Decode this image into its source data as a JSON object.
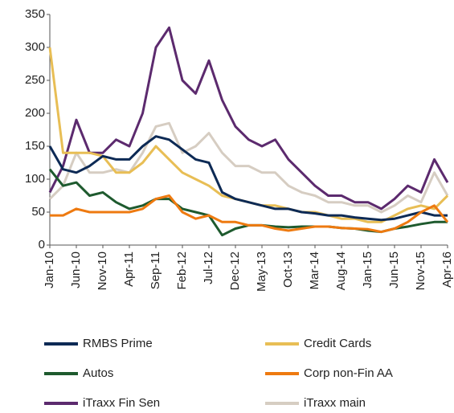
{
  "chart_data": {
    "type": "line",
    "categories": [
      "Jan-10",
      null,
      "Jun-10",
      null,
      "Nov-10",
      null,
      "Apr-11",
      null,
      "Sep-11",
      null,
      "Feb-12",
      null,
      "Jul-12",
      null,
      "Dec-12",
      null,
      "May-13",
      null,
      "Oct-13",
      null,
      "Mar-14",
      null,
      "Aug-14",
      null,
      "Jan-15",
      null,
      "Jun-15",
      null,
      "Nov-15",
      null,
      "Apr-16"
    ],
    "series": [
      {
        "name": "RMBS Prime",
        "color": "#0d2a55",
        "values": [
          150,
          115,
          110,
          120,
          135,
          130,
          130,
          150,
          165,
          160,
          145,
          130,
          125,
          80,
          70,
          65,
          60,
          55,
          55,
          50,
          48,
          45,
          45,
          42,
          40,
          38,
          40,
          45,
          50,
          45,
          45
        ]
      },
      {
        "name": "Credit Cards",
        "color": "#e8be55",
        "values": [
          300,
          140,
          140,
          140,
          135,
          110,
          110,
          125,
          150,
          130,
          110,
          100,
          90,
          75,
          70,
          65,
          60,
          60,
          55,
          50,
          50,
          45,
          40,
          40,
          35,
          35,
          45,
          55,
          60,
          55,
          75
        ]
      },
      {
        "name": "Autos",
        "color": "#1e5a2e",
        "values": [
          115,
          90,
          95,
          75,
          80,
          65,
          55,
          60,
          70,
          70,
          55,
          50,
          45,
          15,
          25,
          30,
          30,
          28,
          27,
          28,
          28,
          28,
          26,
          25,
          22,
          20,
          25,
          28,
          32,
          35,
          35
        ]
      },
      {
        "name": "Corp non-Fin AA",
        "color": "#ee7a10",
        "values": [
          45,
          45,
          55,
          50,
          50,
          50,
          50,
          55,
          70,
          75,
          50,
          40,
          45,
          35,
          35,
          30,
          30,
          25,
          22,
          25,
          28,
          28,
          26,
          25,
          24,
          20,
          25,
          35,
          50,
          60,
          35
        ]
      },
      {
        "name": "iTraxx Fin Sen",
        "color": "#5c2a6e",
        "values": [
          80,
          120,
          190,
          140,
          140,
          160,
          150,
          200,
          300,
          330,
          250,
          230,
          280,
          220,
          180,
          160,
          150,
          160,
          130,
          110,
          90,
          75,
          75,
          65,
          65,
          55,
          70,
          90,
          80,
          130,
          95
        ]
      },
      {
        "name": "iTraxx main",
        "color": "#d6cdc2",
        "values": [
          70,
          90,
          140,
          110,
          110,
          115,
          110,
          140,
          180,
          185,
          140,
          150,
          170,
          140,
          120,
          120,
          110,
          110,
          90,
          80,
          75,
          65,
          65,
          60,
          60,
          50,
          60,
          75,
          65,
          110,
          75
        ]
      }
    ],
    "ylim": [
      0,
      350
    ],
    "yticks": [
      0,
      50,
      100,
      150,
      200,
      250,
      300,
      350
    ]
  }
}
